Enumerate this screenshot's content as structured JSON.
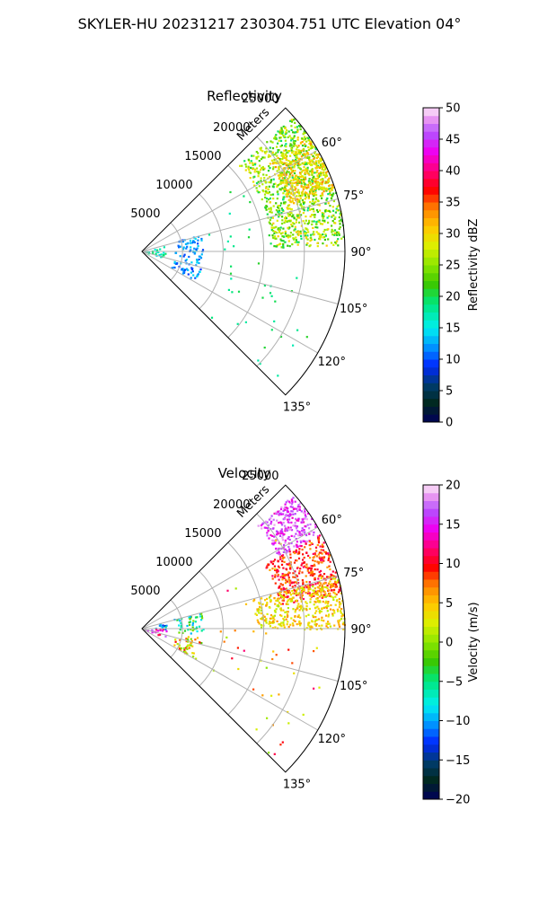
{
  "figure": {
    "title": "SKYLER-HU  20231217  230304.751 UTC Elevation 04°"
  },
  "chart_data": [
    {
      "type": "heatmap",
      "projection": "polar-sector",
      "title": "Reflectivity",
      "radial_label": "Meters",
      "radial_ticks": [
        5000,
        10000,
        15000,
        20000,
        25000
      ],
      "radial_max": 25000,
      "azimuth_range_deg": [
        45,
        135
      ],
      "azimuth_tick_labels": [
        "60°",
        "75°",
        "90°",
        "105°",
        "120°",
        "135°"
      ],
      "azimuth_ticks_deg": [
        60,
        75,
        90,
        105,
        120,
        135
      ],
      "grid": true,
      "colorbar": {
        "label": "Reflectivity dBZ",
        "range": [
          0,
          50
        ],
        "ticks": [
          0,
          5,
          10,
          15,
          20,
          25,
          30,
          35,
          40,
          45,
          50
        ],
        "tick_labels": [
          "0",
          "5",
          "10",
          "15",
          "20",
          "25",
          "30",
          "35",
          "40",
          "45",
          "50"
        ]
      },
      "echo_regions": [
        {
          "az_deg": [
            48,
            88
          ],
          "range_m": [
            16000,
            25000
          ],
          "value": 25,
          "spread": 6,
          "density": 0.55
        },
        {
          "az_deg": [
            55,
            72
          ],
          "range_m": [
            19000,
            25000
          ],
          "value": 30,
          "spread": 4,
          "density": 0.6
        },
        {
          "az_deg": [
            75,
            105
          ],
          "range_m": [
            0,
            3000
          ],
          "value": 17,
          "spread": 3,
          "density": 0.75
        },
        {
          "az_deg": [
            72,
            118
          ],
          "range_m": [
            4000,
            7500
          ],
          "value": 12,
          "spread": 3,
          "density": 0.5
        },
        {
          "az_deg": [
            55,
            135
          ],
          "range_m": [
            8000,
            23000
          ],
          "value": 19,
          "spread": 2,
          "density": 0.012
        }
      ]
    },
    {
      "type": "heatmap",
      "projection": "polar-sector",
      "title": "Velocity",
      "radial_label": "Meters",
      "radial_ticks": [
        5000,
        10000,
        15000,
        20000,
        25000
      ],
      "radial_max": 25000,
      "azimuth_range_deg": [
        45,
        135
      ],
      "azimuth_tick_labels": [
        "60°",
        "75°",
        "90°",
        "105°",
        "120°",
        "135°"
      ],
      "azimuth_ticks_deg": [
        60,
        75,
        90,
        105,
        120,
        135
      ],
      "grid": true,
      "colorbar": {
        "label": "Velocity (m/s)",
        "range": [
          -20,
          20
        ],
        "ticks": [
          -20,
          -15,
          -10,
          -5,
          0,
          5,
          10,
          15,
          20
        ],
        "tick_labels": [
          "−20",
          "−15",
          "−10",
          "−5",
          "0",
          "5",
          "10",
          "15",
          "20"
        ]
      },
      "echo_regions": [
        {
          "az_deg": [
            48,
            62
          ],
          "range_m": [
            19000,
            25000
          ],
          "value": 16,
          "spread": 3,
          "density": 0.6
        },
        {
          "az_deg": [
            62,
            80
          ],
          "range_m": [
            17000,
            25000
          ],
          "value": 9,
          "spread": 3,
          "density": 0.55
        },
        {
          "az_deg": [
            75,
            90
          ],
          "range_m": [
            14000,
            25000
          ],
          "value": 4,
          "spread": 3,
          "density": 0.5
        },
        {
          "az_deg": [
            72,
            90
          ],
          "range_m": [
            0,
            3000
          ],
          "value": -10,
          "spread": 4,
          "density": 0.7
        },
        {
          "az_deg": [
            90,
            110
          ],
          "range_m": [
            0,
            3000
          ],
          "value": 14,
          "spread": 4,
          "density": 0.75
        },
        {
          "az_deg": [
            72,
            95
          ],
          "range_m": [
            4000,
            7500
          ],
          "value": -5,
          "spread": 5,
          "density": 0.45
        },
        {
          "az_deg": [
            98,
            120
          ],
          "range_m": [
            4000,
            7500
          ],
          "value": 4,
          "spread": 6,
          "density": 0.45
        },
        {
          "az_deg": [
            55,
            135
          ],
          "range_m": [
            8000,
            23000
          ],
          "value": 6,
          "spread": 6,
          "density": 0.012
        }
      ]
    }
  ]
}
